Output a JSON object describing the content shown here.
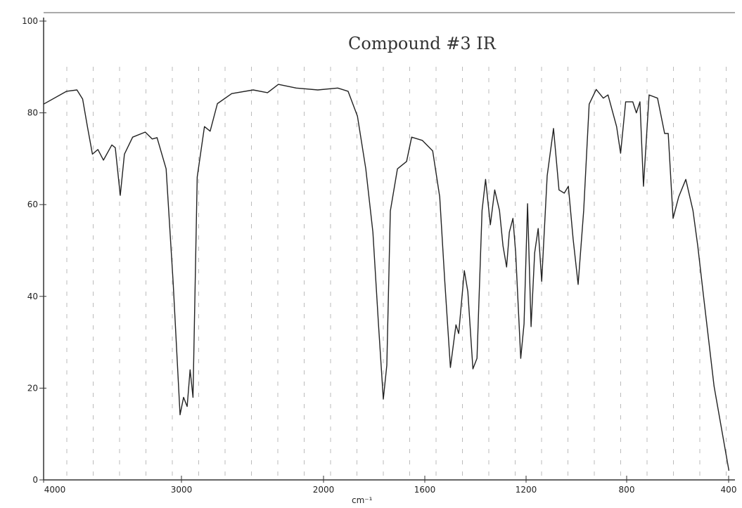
{
  "chart_data": {
    "type": "line",
    "title": "Compound #3 IR",
    "x_label": "cm⁻¹",
    "xlim": [
      4000,
      400
    ],
    "ylim": [
      0,
      100
    ],
    "xticks": [
      4000,
      3000,
      2000,
      1600,
      1200,
      800,
      400
    ],
    "yticks": [
      0,
      20,
      40,
      60,
      80,
      100
    ],
    "x": [
      4000,
      3833,
      3758,
      3717,
      3682,
      3646,
      3606,
      3566,
      3505,
      3480,
      3444,
      3414,
      3354,
      3263,
      3212,
      3177,
      3111,
      3060,
      3010,
      2985,
      2960,
      2939,
      2919,
      2889,
      2838,
      2798,
      2747,
      2646,
      2495,
      2394,
      2318,
      2192,
      2040,
      1944,
      1903,
      1866,
      1833,
      1805,
      1783,
      1764,
      1750,
      1736,
      1708,
      1672,
      1652,
      1610,
      1569,
      1541,
      1521,
      1499,
      1477,
      1466,
      1444,
      1430,
      1410,
      1394,
      1374,
      1360,
      1341,
      1324,
      1305,
      1291,
      1277,
      1266,
      1252,
      1241,
      1221,
      1208,
      1194,
      1180,
      1166,
      1152,
      1138,
      1116,
      1091,
      1069,
      1048,
      1032,
      1013,
      993,
      971,
      949,
      921,
      893,
      874,
      840,
      824,
      804,
      776,
      762,
      748,
      734,
      712,
      679,
      651,
      637,
      618,
      596,
      568,
      540,
      521,
      499,
      457,
      399
    ],
    "values": [
      81.9,
      84.7,
      85,
      83,
      77,
      71,
      72,
      69.7,
      73,
      72.4,
      62,
      71,
      74.7,
      75.8,
      74.3,
      74.6,
      67.8,
      43,
      14.2,
      18,
      16,
      24,
      18,
      66,
      77,
      76,
      82,
      84.2,
      85,
      84.4,
      86.2,
      85.4,
      85,
      85.4,
      84.7,
      79.3,
      67.8,
      54,
      34,
      17.6,
      25,
      58.6,
      67.8,
      69.4,
      74.7,
      74,
      71.7,
      61.7,
      43.3,
      24.5,
      33.8,
      31.9,
      45.6,
      41,
      24.2,
      26.5,
      58.7,
      65.5,
      55.6,
      63.2,
      58.7,
      51,
      46.4,
      54,
      57,
      49.5,
      26.5,
      34,
      60.2,
      33.4,
      49.5,
      54.8,
      43.3,
      66.3,
      76.6,
      63.2,
      62.5,
      64,
      52.5,
      42.6,
      58.7,
      81.9,
      85.1,
      83.2,
      83.9,
      77,
      71.2,
      82.4,
      82.4,
      80,
      82.4,
      64,
      83.9,
      83.2,
      75.5,
      75.5,
      57,
      61.7,
      65.5,
      58.7,
      51,
      40.3,
      20.4,
      2
    ],
    "color": "#222"
  }
}
